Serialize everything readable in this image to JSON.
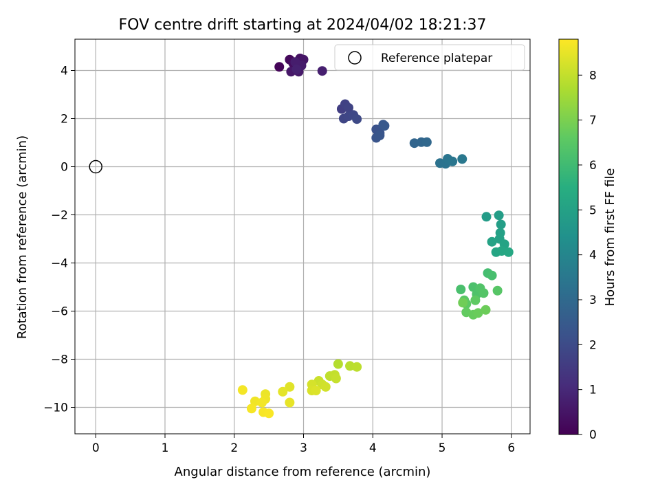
{
  "chart_data": {
    "type": "scatter",
    "title": "FOV centre drift starting at 2024/04/02 18:21:37",
    "xlabel": "Angular distance from reference (arcmin)",
    "ylabel": "Rotation from reference (arcmin)",
    "xlim": [
      -0.3,
      6.27
    ],
    "ylim": [
      -11.1,
      5.3
    ],
    "xticks": [
      0,
      1,
      2,
      3,
      4,
      5,
      6
    ],
    "yticks": [
      4,
      2,
      0,
      -2,
      -4,
      -6,
      -8,
      -10
    ],
    "xtick_labels": [
      "0",
      "1",
      "2",
      "3",
      "4",
      "5",
      "6"
    ],
    "ytick_labels": [
      "4",
      "2",
      "0",
      "−2",
      "−4",
      "−6",
      "−8",
      "−10"
    ],
    "grid": true,
    "legend": {
      "position": "top-right",
      "entries": [
        "Reference platepar"
      ]
    },
    "reference_point": {
      "x": 0,
      "y": 0
    },
    "colorbar": {
      "label": "Hours from first FF file",
      "min": 0,
      "max": 8.8,
      "ticks": [
        0,
        1,
        2,
        3,
        4,
        5,
        6,
        7,
        8
      ],
      "tick_labels": [
        "0",
        "1",
        "2",
        "3",
        "4",
        "5",
        "6",
        "7",
        "8"
      ],
      "colormap": "viridis"
    },
    "points": [
      {
        "x": 2.65,
        "y": 4.15,
        "c": 0.1
      },
      {
        "x": 2.8,
        "y": 4.45,
        "c": 0.2
      },
      {
        "x": 2.85,
        "y": 4.3,
        "c": 0.3
      },
      {
        "x": 2.9,
        "y": 4.1,
        "c": 0.35
      },
      {
        "x": 2.95,
        "y": 4.5,
        "c": 0.4
      },
      {
        "x": 3.0,
        "y": 4.45,
        "c": 0.5
      },
      {
        "x": 2.82,
        "y": 3.95,
        "c": 0.55
      },
      {
        "x": 2.93,
        "y": 3.95,
        "c": 0.6
      },
      {
        "x": 2.97,
        "y": 4.2,
        "c": 0.65
      },
      {
        "x": 2.88,
        "y": 4.35,
        "c": 0.7
      },
      {
        "x": 3.27,
        "y": 3.98,
        "c": 0.75
      },
      {
        "x": 2.9,
        "y": 4.05,
        "c": 0.8
      },
      {
        "x": 3.55,
        "y": 2.4,
        "c": 1.6
      },
      {
        "x": 3.6,
        "y": 2.6,
        "c": 1.7
      },
      {
        "x": 3.65,
        "y": 2.45,
        "c": 1.75
      },
      {
        "x": 3.58,
        "y": 2.0,
        "c": 1.8
      },
      {
        "x": 3.65,
        "y": 2.1,
        "c": 1.85
      },
      {
        "x": 3.72,
        "y": 2.15,
        "c": 1.9
      },
      {
        "x": 3.77,
        "y": 1.98,
        "c": 1.95
      },
      {
        "x": 4.05,
        "y": 1.55,
        "c": 2.2
      },
      {
        "x": 4.1,
        "y": 1.4,
        "c": 2.25
      },
      {
        "x": 4.05,
        "y": 1.2,
        "c": 2.3
      },
      {
        "x": 4.1,
        "y": 1.3,
        "c": 2.35
      },
      {
        "x": 4.15,
        "y": 1.75,
        "c": 2.4
      },
      {
        "x": 4.17,
        "y": 1.7,
        "c": 2.45
      },
      {
        "x": 4.6,
        "y": 0.98,
        "c": 2.85
      },
      {
        "x": 4.7,
        "y": 1.02,
        "c": 2.9
      },
      {
        "x": 4.78,
        "y": 1.02,
        "c": 2.95
      },
      {
        "x": 4.97,
        "y": 0.15,
        "c": 3.3
      },
      {
        "x": 5.05,
        "y": 0.12,
        "c": 3.35
      },
      {
        "x": 5.08,
        "y": 0.33,
        "c": 3.4
      },
      {
        "x": 5.15,
        "y": 0.22,
        "c": 3.45
      },
      {
        "x": 5.29,
        "y": 0.32,
        "c": 3.5
      },
      {
        "x": 5.64,
        "y": -2.08,
        "c": 4.8
      },
      {
        "x": 5.82,
        "y": -2.02,
        "c": 4.85
      },
      {
        "x": 5.85,
        "y": -2.4,
        "c": 4.9
      },
      {
        "x": 5.84,
        "y": -2.75,
        "c": 4.95
      },
      {
        "x": 5.83,
        "y": -3.0,
        "c": 5.0
      },
      {
        "x": 5.72,
        "y": -3.12,
        "c": 5.05
      },
      {
        "x": 5.9,
        "y": -3.22,
        "c": 5.1
      },
      {
        "x": 5.78,
        "y": -3.55,
        "c": 5.15
      },
      {
        "x": 5.86,
        "y": -3.5,
        "c": 5.2
      },
      {
        "x": 5.96,
        "y": -3.55,
        "c": 5.25
      },
      {
        "x": 5.66,
        "y": -4.42,
        "c": 6.1
      },
      {
        "x": 5.72,
        "y": -4.52,
        "c": 6.15
      },
      {
        "x": 5.27,
        "y": -5.1,
        "c": 6.2
      },
      {
        "x": 5.45,
        "y": -5.0,
        "c": 6.25
      },
      {
        "x": 5.5,
        "y": -5.3,
        "c": 6.3
      },
      {
        "x": 5.55,
        "y": -5.05,
        "c": 6.35
      },
      {
        "x": 5.6,
        "y": -5.25,
        "c": 6.4
      },
      {
        "x": 5.8,
        "y": -5.15,
        "c": 6.45
      },
      {
        "x": 5.32,
        "y": -5.55,
        "c": 6.5
      },
      {
        "x": 5.35,
        "y": -5.7,
        "c": 6.55
      },
      {
        "x": 5.48,
        "y": -5.55,
        "c": 6.6
      },
      {
        "x": 5.35,
        "y": -6.05,
        "c": 6.65
      },
      {
        "x": 5.45,
        "y": -6.15,
        "c": 6.7
      },
      {
        "x": 5.52,
        "y": -6.08,
        "c": 6.75
      },
      {
        "x": 5.63,
        "y": -5.95,
        "c": 6.8
      },
      {
        "x": 5.3,
        "y": -5.65,
        "c": 6.85
      },
      {
        "x": 3.5,
        "y": -8.2,
        "c": 7.8
      },
      {
        "x": 3.67,
        "y": -8.28,
        "c": 7.85
      },
      {
        "x": 3.77,
        "y": -8.32,
        "c": 7.9
      },
      {
        "x": 3.38,
        "y": -8.7,
        "c": 7.95
      },
      {
        "x": 3.45,
        "y": -8.65,
        "c": 8.0
      },
      {
        "x": 3.47,
        "y": -8.8,
        "c": 8.05
      },
      {
        "x": 3.22,
        "y": -8.9,
        "c": 8.1
      },
      {
        "x": 3.27,
        "y": -9.05,
        "c": 8.15
      },
      {
        "x": 3.32,
        "y": -9.15,
        "c": 8.2
      },
      {
        "x": 3.12,
        "y": -9.05,
        "c": 8.25
      },
      {
        "x": 3.12,
        "y": -9.3,
        "c": 8.3
      },
      {
        "x": 3.18,
        "y": -9.3,
        "c": 8.35
      },
      {
        "x": 2.8,
        "y": -9.15,
        "c": 8.4
      },
      {
        "x": 2.7,
        "y": -9.35,
        "c": 8.45
      },
      {
        "x": 2.8,
        "y": -9.8,
        "c": 8.5
      },
      {
        "x": 2.45,
        "y": -9.45,
        "c": 8.55
      },
      {
        "x": 2.45,
        "y": -9.65,
        "c": 8.6
      },
      {
        "x": 2.3,
        "y": -9.75,
        "c": 8.62
      },
      {
        "x": 2.4,
        "y": -9.8,
        "c": 8.65
      },
      {
        "x": 2.12,
        "y": -9.28,
        "c": 8.68
      },
      {
        "x": 2.25,
        "y": -10.05,
        "c": 8.7
      },
      {
        "x": 2.42,
        "y": -10.2,
        "c": 8.72
      },
      {
        "x": 2.5,
        "y": -10.25,
        "c": 8.75
      }
    ]
  }
}
